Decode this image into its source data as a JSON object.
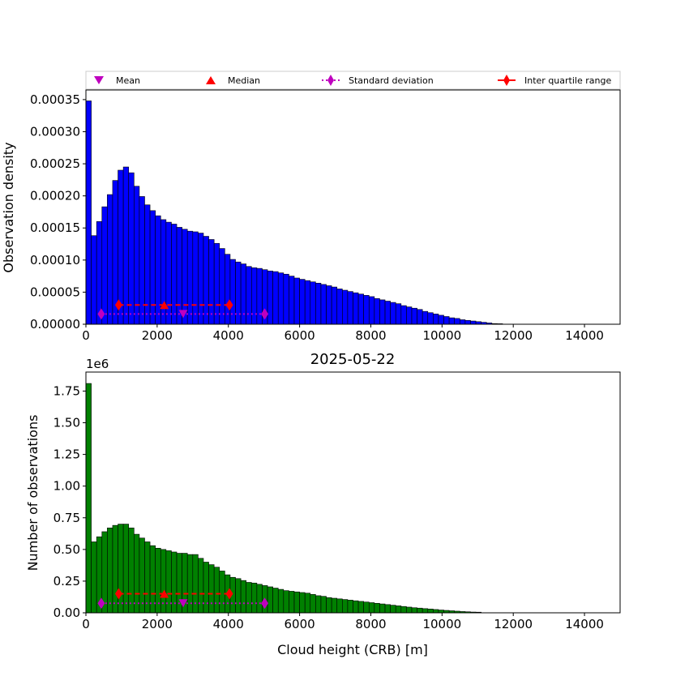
{
  "chart_data": [
    {
      "type": "bar",
      "ylabel": "Observation density",
      "xlim": [
        0,
        15000
      ],
      "ylim": [
        0,
        0.000365
      ],
      "bin_width": 150,
      "bar_color": "#0000ff",
      "x_ticks": [
        0,
        2000,
        4000,
        6000,
        8000,
        10000,
        12000,
        14000
      ],
      "y_ticks": [
        0.0,
        5e-05,
        0.0001,
        0.00015,
        0.0002,
        0.00025,
        0.0003,
        0.00035
      ],
      "y_tick_labels": [
        "0.00000",
        "0.00005",
        "0.00010",
        "0.00015",
        "0.00020",
        "0.00025",
        "0.00030",
        "0.00035"
      ],
      "values": [
        0.000348,
        0.000138,
        0.00016,
        0.000183,
        0.000202,
        0.000224,
        0.00024,
        0.000245,
        0.000236,
        0.000215,
        0.000199,
        0.000186,
        0.000177,
        0.000169,
        0.000163,
        0.000159,
        0.000156,
        0.000151,
        0.000148,
        0.000145,
        0.000144,
        0.000142,
        0.000137,
        0.000132,
        0.000126,
        0.000118,
        0.000109,
        0.000101,
        9.7e-05,
        9.4e-05,
        9e-05,
        8.8e-05,
        8.7e-05,
        8.5e-05,
        8.3e-05,
        8.2e-05,
        8e-05,
        7.8e-05,
        7.5e-05,
        7.2e-05,
        7e-05,
        6.8e-05,
        6.6e-05,
        6.4e-05,
        6.2e-05,
        6e-05,
        5.8e-05,
        5.5e-05,
        5.3e-05,
        5.1e-05,
        4.9e-05,
        4.7e-05,
        4.5e-05,
        4.3e-05,
        4e-05,
        3.8e-05,
        3.6e-05,
        3.4e-05,
        3.2e-05,
        2.9e-05,
        2.7e-05,
        2.5e-05,
        2.3e-05,
        2e-05,
        1.8e-05,
        1.6e-05,
        1.4e-05,
        1.2e-05,
        1e-05,
        9e-06,
        7e-06,
        6e-06,
        5e-06,
        4e-06,
        3e-06,
        2e-06,
        1e-06,
        8e-07
      ],
      "stats": {
        "mean": 2730,
        "median": 2200,
        "std_range": [
          430,
          5020
        ],
        "iqr_range": [
          920,
          4030
        ],
        "mean_y": 1.6e-05,
        "median_y": 3e-05,
        "std_y": 1.6e-05,
        "iqr_y": 3e-05
      }
    },
    {
      "type": "bar",
      "title": "2025-05-22",
      "xlabel": "Cloud height (CRB) [m]",
      "ylabel": "Number of observations",
      "offset_label": "1e6",
      "xlim": [
        0,
        15000
      ],
      "ylim": [
        0,
        1.9
      ],
      "bin_width": 150,
      "bar_color": "#008000",
      "x_ticks": [
        0,
        2000,
        4000,
        6000,
        8000,
        10000,
        12000,
        14000
      ],
      "y_ticks": [
        0.0,
        0.25,
        0.5,
        0.75,
        1.0,
        1.25,
        1.5,
        1.75
      ],
      "y_tick_labels": [
        "0.00",
        "0.25",
        "0.50",
        "0.75",
        "1.00",
        "1.25",
        "1.50",
        "1.75"
      ],
      "values": [
        1.81,
        0.56,
        0.6,
        0.64,
        0.67,
        0.69,
        0.7,
        0.7,
        0.67,
        0.62,
        0.59,
        0.56,
        0.53,
        0.51,
        0.5,
        0.49,
        0.48,
        0.47,
        0.47,
        0.46,
        0.46,
        0.43,
        0.4,
        0.38,
        0.36,
        0.33,
        0.3,
        0.28,
        0.27,
        0.255,
        0.24,
        0.235,
        0.225,
        0.215,
        0.205,
        0.195,
        0.185,
        0.175,
        0.17,
        0.165,
        0.16,
        0.155,
        0.145,
        0.135,
        0.13,
        0.12,
        0.115,
        0.11,
        0.105,
        0.1,
        0.095,
        0.09,
        0.085,
        0.08,
        0.075,
        0.07,
        0.065,
        0.06,
        0.055,
        0.05,
        0.045,
        0.04,
        0.037,
        0.033,
        0.03,
        0.026,
        0.022,
        0.019,
        0.016,
        0.013,
        0.01,
        0.008,
        0.006,
        0.005
      ],
      "stats": {
        "mean": 2730,
        "median": 2200,
        "std_range": [
          430,
          5020
        ],
        "iqr_range": [
          920,
          4030
        ],
        "mean_y": 0.075,
        "median_y": 0.15,
        "std_y": 0.075,
        "iqr_y": 0.15
      }
    }
  ],
  "legend": {
    "items": [
      {
        "label": "Mean",
        "color": "#bf00bf",
        "marker": "triangle-down"
      },
      {
        "label": "Median",
        "color": "#ff0000",
        "marker": "triangle-up"
      },
      {
        "label": "Standard deviation",
        "color": "#bf00bf",
        "marker": "diamond-dotted"
      },
      {
        "label": "Inter quartile range",
        "color": "#ff0000",
        "marker": "diamond-solid"
      }
    ]
  },
  "colors": {
    "mean": "#bf00bf",
    "median": "#ff0000",
    "std": "#bf00bf",
    "iqr": "#ff0000"
  }
}
